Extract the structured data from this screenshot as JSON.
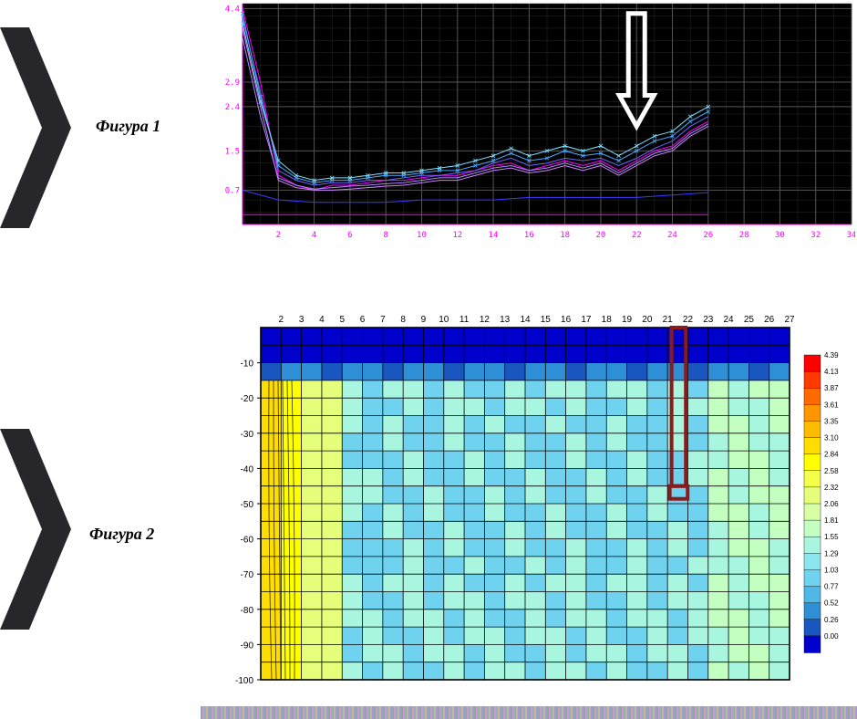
{
  "labels": {
    "fig1": "Фигура 1",
    "fig2": "Фигура 2"
  },
  "chevron_color": "#27262b",
  "chart1": {
    "type": "line",
    "bg": "#000000",
    "grid_major": "#555555",
    "grid_minor": "#2a2a2a",
    "axis_color": "#ff00ff",
    "x": {
      "min": 0,
      "max": 34,
      "ticks": [
        2,
        4,
        6,
        8,
        10,
        12,
        14,
        16,
        18,
        20,
        22,
        24,
        26,
        28,
        30,
        32,
        34
      ],
      "label_color": "#ff00ff",
      "fontsize": 9
    },
    "y": {
      "min": 0,
      "max": 4.5,
      "ticks": [
        0.7,
        1.5,
        2.4,
        2.9,
        4.4
      ],
      "label_color": "#ff00ff",
      "fontsize": 9
    },
    "series": [
      {
        "color": "#ff00ff",
        "width": 1,
        "data": [
          [
            0,
            4.4
          ],
          [
            1,
            2.9
          ],
          [
            2,
            1.0
          ],
          [
            3,
            0.8
          ],
          [
            4,
            0.7
          ],
          [
            5,
            0.8
          ],
          [
            6,
            0.8
          ],
          [
            7,
            0.85
          ],
          [
            8,
            0.9
          ],
          [
            9,
            0.9
          ],
          [
            10,
            0.95
          ],
          [
            11,
            1.0
          ],
          [
            12,
            1.0
          ],
          [
            13,
            1.1
          ],
          [
            14,
            1.2
          ],
          [
            15,
            1.25
          ],
          [
            16,
            1.1
          ],
          [
            17,
            1.2
          ],
          [
            18,
            1.3
          ],
          [
            19,
            1.2
          ],
          [
            20,
            1.3
          ],
          [
            21,
            1.1
          ],
          [
            22,
            1.3
          ],
          [
            23,
            1.5
          ],
          [
            24,
            1.6
          ],
          [
            25,
            1.9
          ],
          [
            26,
            2.1
          ]
        ]
      },
      {
        "color": "#6666ff",
        "width": 1,
        "data": [
          [
            0,
            4.2
          ],
          [
            1,
            2.7
          ],
          [
            2,
            1.1
          ],
          [
            3,
            0.9
          ],
          [
            4,
            0.8
          ],
          [
            5,
            0.85
          ],
          [
            6,
            0.85
          ],
          [
            7,
            0.9
          ],
          [
            8,
            0.9
          ],
          [
            9,
            0.95
          ],
          [
            10,
            1.0
          ],
          [
            11,
            1.0
          ],
          [
            12,
            1.05
          ],
          [
            13,
            1.1
          ],
          [
            14,
            1.25
          ],
          [
            15,
            1.35
          ],
          [
            16,
            1.2
          ],
          [
            17,
            1.25
          ],
          [
            18,
            1.35
          ],
          [
            19,
            1.3
          ],
          [
            20,
            1.35
          ],
          [
            21,
            1.2
          ],
          [
            22,
            1.35
          ],
          [
            23,
            1.55
          ],
          [
            24,
            1.7
          ],
          [
            25,
            2.0
          ],
          [
            26,
            2.2
          ]
        ]
      },
      {
        "color": "#4aa8ff",
        "width": 1,
        "data": [
          [
            0,
            4.3
          ],
          [
            1,
            2.6
          ],
          [
            2,
            1.2
          ],
          [
            3,
            0.95
          ],
          [
            4,
            0.85
          ],
          [
            5,
            0.9
          ],
          [
            6,
            0.9
          ],
          [
            7,
            0.95
          ],
          [
            8,
            1.0
          ],
          [
            9,
            1.0
          ],
          [
            10,
            1.05
          ],
          [
            11,
            1.1
          ],
          [
            12,
            1.1
          ],
          [
            13,
            1.2
          ],
          [
            14,
            1.3
          ],
          [
            15,
            1.45
          ],
          [
            16,
            1.3
          ],
          [
            17,
            1.35
          ],
          [
            18,
            1.5
          ],
          [
            19,
            1.4
          ],
          [
            20,
            1.45
          ],
          [
            21,
            1.3
          ],
          [
            22,
            1.5
          ],
          [
            23,
            1.7
          ],
          [
            24,
            1.8
          ],
          [
            25,
            2.1
          ],
          [
            26,
            2.3
          ]
        ]
      },
      {
        "color": "#7fdfff",
        "width": 1,
        "data": [
          [
            0,
            4.1
          ],
          [
            1,
            2.5
          ],
          [
            2,
            1.3
          ],
          [
            3,
            1.0
          ],
          [
            4,
            0.9
          ],
          [
            5,
            0.95
          ],
          [
            6,
            0.95
          ],
          [
            7,
            1.0
          ],
          [
            8,
            1.05
          ],
          [
            9,
            1.05
          ],
          [
            10,
            1.1
          ],
          [
            11,
            1.15
          ],
          [
            12,
            1.2
          ],
          [
            13,
            1.3
          ],
          [
            14,
            1.4
          ],
          [
            15,
            1.55
          ],
          [
            16,
            1.4
          ],
          [
            17,
            1.5
          ],
          [
            18,
            1.6
          ],
          [
            19,
            1.5
          ],
          [
            20,
            1.6
          ],
          [
            21,
            1.4
          ],
          [
            22,
            1.6
          ],
          [
            23,
            1.8
          ],
          [
            24,
            1.9
          ],
          [
            25,
            2.2
          ],
          [
            26,
            2.4
          ]
        ]
      },
      {
        "color": "#d080ff",
        "width": 1,
        "data": [
          [
            0,
            4.0
          ],
          [
            1,
            2.4
          ],
          [
            2,
            0.9
          ],
          [
            3,
            0.75
          ],
          [
            4,
            0.7
          ],
          [
            5,
            0.7
          ],
          [
            6,
            0.72
          ],
          [
            7,
            0.75
          ],
          [
            8,
            0.78
          ],
          [
            9,
            0.8
          ],
          [
            10,
            0.85
          ],
          [
            11,
            0.9
          ],
          [
            12,
            0.9
          ],
          [
            13,
            1.0
          ],
          [
            14,
            1.1
          ],
          [
            15,
            1.15
          ],
          [
            16,
            1.05
          ],
          [
            17,
            1.1
          ],
          [
            18,
            1.2
          ],
          [
            19,
            1.1
          ],
          [
            20,
            1.2
          ],
          [
            21,
            1.0
          ],
          [
            22,
            1.2
          ],
          [
            23,
            1.4
          ],
          [
            24,
            1.5
          ],
          [
            25,
            1.8
          ],
          [
            26,
            2.0
          ]
        ]
      },
      {
        "color": "#aa88ff",
        "width": 1,
        "data": [
          [
            0,
            3.8
          ],
          [
            1,
            2.2
          ],
          [
            2,
            0.95
          ],
          [
            3,
            0.8
          ],
          [
            4,
            0.72
          ],
          [
            5,
            0.75
          ],
          [
            6,
            0.78
          ],
          [
            7,
            0.8
          ],
          [
            8,
            0.83
          ],
          [
            9,
            0.85
          ],
          [
            10,
            0.9
          ],
          [
            11,
            0.95
          ],
          [
            12,
            0.95
          ],
          [
            13,
            1.05
          ],
          [
            14,
            1.15
          ],
          [
            15,
            1.2
          ],
          [
            16,
            1.1
          ],
          [
            17,
            1.15
          ],
          [
            18,
            1.25
          ],
          [
            19,
            1.15
          ],
          [
            20,
            1.25
          ],
          [
            21,
            1.05
          ],
          [
            22,
            1.25
          ],
          [
            23,
            1.45
          ],
          [
            24,
            1.55
          ],
          [
            25,
            1.85
          ],
          [
            26,
            2.05
          ]
        ]
      },
      {
        "color": "#3b3bff",
        "width": 1,
        "data": [
          [
            0,
            0.7
          ],
          [
            2,
            0.5
          ],
          [
            4,
            0.45
          ],
          [
            6,
            0.45
          ],
          [
            8,
            0.45
          ],
          [
            10,
            0.5
          ],
          [
            12,
            0.5
          ],
          [
            14,
            0.5
          ],
          [
            16,
            0.55
          ],
          [
            18,
            0.55
          ],
          [
            20,
            0.55
          ],
          [
            22,
            0.55
          ],
          [
            24,
            0.6
          ],
          [
            26,
            0.65
          ]
        ]
      },
      {
        "color": "#ff00ff",
        "width": 1,
        "data": [
          [
            0,
            0.2
          ],
          [
            2,
            0.2
          ],
          [
            4,
            0.2
          ],
          [
            6,
            0.2
          ],
          [
            8,
            0.2
          ],
          [
            10,
            0.2
          ],
          [
            12,
            0.2
          ],
          [
            14,
            0.2
          ],
          [
            16,
            0.2
          ],
          [
            18,
            0.2
          ],
          [
            20,
            0.2
          ],
          [
            22,
            0.2
          ],
          [
            24,
            0.2
          ],
          [
            26,
            0.2
          ]
        ]
      }
    ],
    "arrow": {
      "x": 22,
      "top_y": 4.3,
      "tip_y": 2.0,
      "stroke": "#ffffff",
      "stroke_width": 5
    }
  },
  "chart2": {
    "type": "heatmap",
    "bg": "#ffffff",
    "axis_color": "#000000",
    "grid_color": "#000000",
    "fontsize": 10,
    "x": {
      "min": 1,
      "max": 27,
      "ticks": [
        2,
        3,
        4,
        5,
        6,
        7,
        8,
        9,
        10,
        11,
        12,
        13,
        14,
        15,
        16,
        17,
        18,
        19,
        20,
        21,
        22,
        23,
        24,
        25,
        26,
        27
      ]
    },
    "y": {
      "min": -100,
      "max": 0,
      "ticks": [
        -10,
        -20,
        -30,
        -40,
        -50,
        -60,
        -70,
        -80,
        -90,
        -100
      ]
    },
    "legend": {
      "values": [
        4.39,
        4.13,
        3.87,
        3.61,
        3.35,
        3.1,
        2.84,
        2.58,
        2.32,
        2.06,
        1.81,
        1.55,
        1.29,
        1.03,
        0.77,
        0.52,
        0.26,
        0.0
      ],
      "colors": [
        "#ff0000",
        "#ff3a00",
        "#ff6a00",
        "#ff9600",
        "#ffbb00",
        "#ffdd00",
        "#ffff00",
        "#f4ff4a",
        "#e6ff7a",
        "#d7ffa3",
        "#c4ffc2",
        "#a8f5e0",
        "#8be6ee",
        "#6fd3f0",
        "#4fb8e6",
        "#2f8fd6",
        "#1a56c0",
        "#0000cc"
      ],
      "fontsize": 8
    },
    "cells": {
      "cols": 26,
      "rows": 20,
      "left_band_colors": [
        "#e6ff7a",
        "#ffff00",
        "#ffdd00",
        "#ffff00",
        "#e6ff7a",
        "#c4ffc2"
      ],
      "top_band_color": "#0000cc",
      "mid_color": "#6fd3f0",
      "light_color": "#a8f5e0",
      "speckle_color": "#c4ffc2"
    },
    "highlight_rect": {
      "x": 21.2,
      "y_top": 0,
      "y_bot": -45,
      "width": 0.7,
      "stroke": "#8b1a1a",
      "stroke_width": 4
    }
  }
}
